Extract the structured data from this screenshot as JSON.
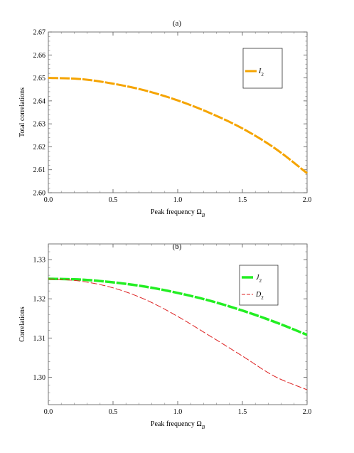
{
  "chart_data": [
    {
      "type": "line",
      "panel_label": "(a)",
      "xlabel": "Peak frequency Ω",
      "xlabel_sub": "B",
      "ylabel": "Total correlations",
      "xlim": [
        0,
        2
      ],
      "ylim": [
        2.6,
        2.67
      ],
      "xticks": [
        "0.0",
        "0.5",
        "1.0",
        "1.5",
        "2.0"
      ],
      "yticks": [
        "2.60",
        "2.61",
        "2.62",
        "2.63",
        "2.64",
        "2.65",
        "2.66",
        "2.67"
      ],
      "legend_position": "top-right",
      "series": [
        {
          "name": "I",
          "name_sub": "2",
          "color": "#f5a400",
          "style": "dashed-thick",
          "x": [
            0.0,
            0.25,
            0.5,
            0.75,
            1.0,
            1.25,
            1.5,
            1.75,
            2.0
          ],
          "y": [
            2.65,
            2.6495,
            2.6475,
            2.6445,
            2.6402,
            2.6347,
            2.628,
            2.6194,
            2.6085
          ]
        }
      ]
    },
    {
      "type": "line",
      "panel_label": "(b)",
      "xlabel": "Peak frequency Ω",
      "xlabel_sub": "B",
      "ylabel": "Correlations",
      "xlim": [
        0,
        2
      ],
      "ylim": [
        1.293,
        1.334
      ],
      "xticks": [
        "0.0",
        "0.5",
        "1.0",
        "1.5",
        "2.0"
      ],
      "yticks": [
        "1.30",
        "1.31",
        "1.32",
        "1.33"
      ],
      "legend_position": "top-right",
      "series": [
        {
          "name": "J",
          "name_sub": "2",
          "color": "#22ee22",
          "style": "dashed-thick",
          "x": [
            0.0,
            0.25,
            0.5,
            0.75,
            1.0,
            1.25,
            1.5,
            1.75,
            2.0
          ],
          "y": [
            1.3251,
            1.3249,
            1.3242,
            1.3231,
            1.3215,
            1.3195,
            1.317,
            1.3141,
            1.3108
          ]
        },
        {
          "name": "D",
          "name_sub": "2",
          "color": "#dd2222",
          "style": "dashed-thin",
          "x": [
            0.0,
            0.25,
            0.5,
            0.75,
            1.0,
            1.25,
            1.5,
            1.75,
            2.0
          ],
          "y": [
            1.3251,
            1.3245,
            1.3228,
            1.3198,
            1.3155,
            1.3105,
            1.3054,
            1.3002,
            1.2968
          ]
        }
      ]
    }
  ]
}
